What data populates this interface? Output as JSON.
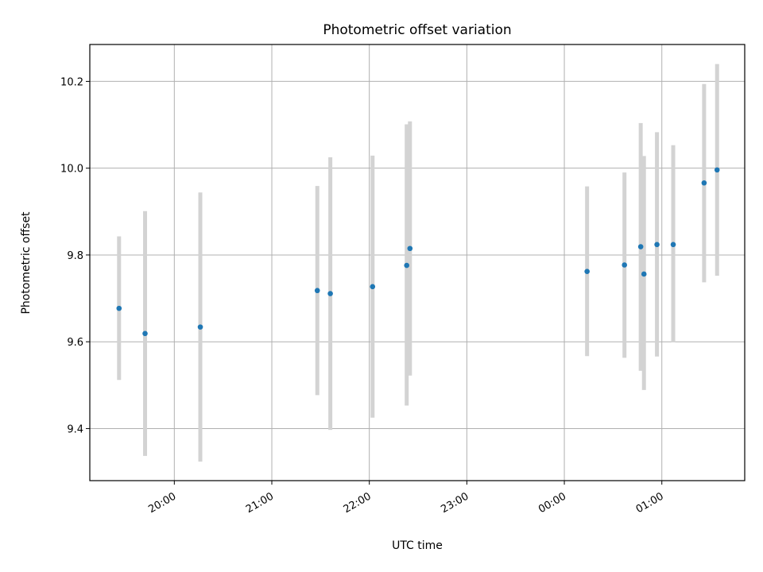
{
  "chart_data": {
    "type": "scatter",
    "title": "Photometric offset variation",
    "xlabel": "UTC time",
    "ylabel": "Photometric offset",
    "grid": true,
    "x_tick_labels": [
      "20:00",
      "21:00",
      "22:00",
      "23:00",
      "00:00",
      "01:00"
    ],
    "y_tick_labels": [
      "9.4",
      "9.6",
      "9.8",
      "10.0",
      "10.2"
    ],
    "y_ticks": [
      9.4,
      9.6,
      9.8,
      10.0,
      10.2
    ],
    "ylim": [
      9.28,
      10.285
    ],
    "x_tick_times": [
      "20:00",
      "21:00",
      "22:00",
      "23:00",
      "00:00",
      "01:00"
    ],
    "xlim": [
      "19:08",
      "01:51"
    ],
    "colors": {
      "marker": "#1f77b4",
      "errorbar": "#d3d3d3",
      "grid": "#b0b0b0"
    },
    "points": [
      {
        "x": "19:26",
        "y": 9.677,
        "ylow": 9.512,
        "yhigh": 9.843
      },
      {
        "x": "19:42",
        "y": 9.619,
        "ylow": 9.337,
        "yhigh": 9.901
      },
      {
        "x": "20:16",
        "y": 9.634,
        "ylow": 9.324,
        "yhigh": 9.944
      },
      {
        "x": "21:28",
        "y": 9.718,
        "ylow": 9.477,
        "yhigh": 9.959
      },
      {
        "x": "21:36",
        "y": 9.711,
        "ylow": 9.397,
        "yhigh": 10.025
      },
      {
        "x": "22:02",
        "y": 9.727,
        "ylow": 9.425,
        "yhigh": 10.029
      },
      {
        "x": "22:23",
        "y": 9.776,
        "ylow": 9.453,
        "yhigh": 10.101
      },
      {
        "x": "22:25",
        "y": 9.815,
        "ylow": 9.522,
        "yhigh": 10.108
      },
      {
        "x": "00:14",
        "y": 9.762,
        "ylow": 9.567,
        "yhigh": 9.958
      },
      {
        "x": "00:37",
        "y": 9.777,
        "ylow": 9.563,
        "yhigh": 9.99
      },
      {
        "x": "00:47",
        "y": 9.819,
        "ylow": 9.533,
        "yhigh": 10.104
      },
      {
        "x": "00:49",
        "y": 9.756,
        "ylow": 9.489,
        "yhigh": 10.028
      },
      {
        "x": "00:57",
        "y": 9.824,
        "ylow": 9.566,
        "yhigh": 10.083
      },
      {
        "x": "01:07",
        "y": 9.824,
        "ylow": 9.599,
        "yhigh": 10.053
      },
      {
        "x": "01:26",
        "y": 9.966,
        "ylow": 9.737,
        "yhigh": 10.194
      },
      {
        "x": "01:34",
        "y": 9.996,
        "ylow": 9.752,
        "yhigh": 10.24
      }
    ]
  }
}
